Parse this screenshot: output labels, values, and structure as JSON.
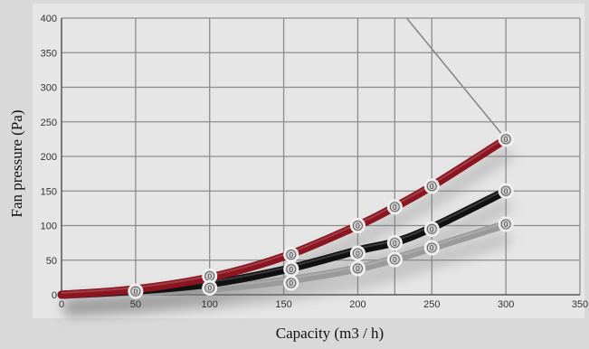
{
  "chart_data": {
    "type": "line",
    "title": "",
    "xlabel": "Capacity (m3 / h)",
    "ylabel": "Fan pressure (Pa)",
    "xlim": [
      0,
      350
    ],
    "ylim": [
      0,
      400
    ],
    "x_ticks": [
      0,
      50,
      100,
      150,
      200,
      250,
      300,
      350
    ],
    "y_ticks": [
      0,
      50,
      100,
      150,
      200,
      250,
      300,
      350,
      400
    ],
    "grid": true,
    "legend": "none",
    "series": [
      {
        "color": "#8b1520",
        "points": [
          [
            0,
            0
          ],
          [
            50,
            8
          ],
          [
            100,
            25
          ],
          [
            150,
            55
          ],
          [
            200,
            100
          ],
          [
            225,
            127
          ],
          [
            250,
            157
          ],
          [
            300,
            225
          ]
        ]
      },
      {
        "color": "#111111",
        "points": [
          [
            0,
            0
          ],
          [
            50,
            6
          ],
          [
            100,
            16
          ],
          [
            150,
            36
          ],
          [
            200,
            64
          ],
          [
            225,
            76
          ],
          [
            250,
            97
          ],
          [
            300,
            150
          ]
        ]
      },
      {
        "color": "#9a9a9a",
        "points": [
          [
            0,
            0
          ],
          [
            50,
            4
          ],
          [
            100,
            9
          ],
          [
            150,
            20
          ],
          [
            200,
            38
          ],
          [
            225,
            52
          ],
          [
            250,
            68
          ],
          [
            300,
            102
          ]
        ]
      }
    ],
    "marker_labels": [
      {
        "x": 50,
        "y": 5,
        "text": "0"
      },
      {
        "x": 100,
        "y": 27,
        "text": "0"
      },
      {
        "x": 100,
        "y": 10,
        "text": "0"
      },
      {
        "x": 155,
        "y": 58,
        "text": "0"
      },
      {
        "x": 155,
        "y": 37,
        "text": "0"
      },
      {
        "x": 155,
        "y": 17,
        "text": "0"
      },
      {
        "x": 200,
        "y": 100,
        "text": "0"
      },
      {
        "x": 200,
        "y": 60,
        "text": "0"
      },
      {
        "x": 200,
        "y": 38,
        "text": "0"
      },
      {
        "x": 225,
        "y": 127,
        "text": "0"
      },
      {
        "x": 225,
        "y": 75,
        "text": "0"
      },
      {
        "x": 225,
        "y": 51,
        "text": "0"
      },
      {
        "x": 250,
        "y": 157,
        "text": "0"
      },
      {
        "x": 250,
        "y": 95,
        "text": "0"
      },
      {
        "x": 250,
        "y": 68,
        "text": "0"
      },
      {
        "x": 300,
        "y": 225,
        "text": "0"
      },
      {
        "x": 300,
        "y": 150,
        "text": "0"
      },
      {
        "x": 300,
        "y": 102,
        "text": "0"
      }
    ],
    "reference_line": {
      "from": [
        233,
        400
      ],
      "to": [
        300,
        225
      ],
      "color": "#888888"
    },
    "colors": {
      "plot_bg": "#e6e6e6",
      "grid": "#8c8c8c"
    }
  }
}
